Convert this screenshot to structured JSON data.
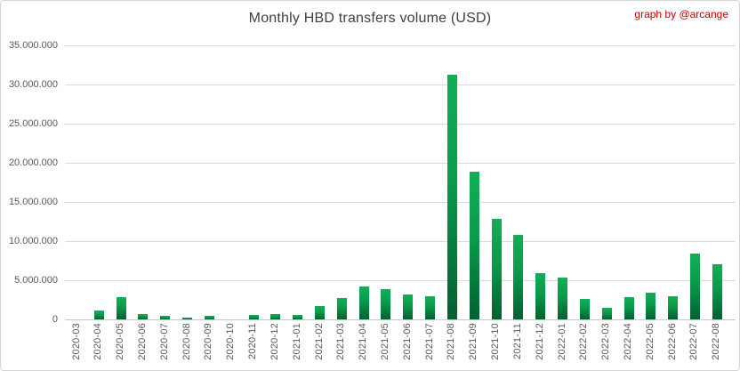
{
  "title": "Monthly HBD transfers volume (USD)",
  "credit": "graph by @arcange",
  "colors": {
    "bar_gradient_top": "#11b055",
    "bar_gradient_bottom": "#016031",
    "gridline": "#dadada",
    "axis_text": "#595959",
    "title_text": "#404040",
    "credit_text": "#c00000",
    "frame_border": "#d4d4d4"
  },
  "chart_data": {
    "type": "bar",
    "title": "Monthly HBD transfers volume (USD)",
    "xlabel": "",
    "ylabel": "",
    "grid": true,
    "legend": false,
    "ylim": [
      0,
      35000000
    ],
    "ytick_values": [
      0,
      5000000,
      10000000,
      15000000,
      20000000,
      25000000,
      30000000,
      35000000
    ],
    "ytick_labels": [
      "0",
      "5.000.000",
      "10.000.000",
      "15.000.000",
      "20.000.000",
      "25.000.000",
      "30.000.000",
      "35.000.000"
    ],
    "categories": [
      "2020-03",
      "2020-04",
      "2020-05",
      "2020-06",
      "2020-07",
      "2020-08",
      "2020-09",
      "2020-10",
      "2020-11",
      "2020-12",
      "2021-01",
      "2021-02",
      "2021-03",
      "2021-04",
      "2021-05",
      "2021-06",
      "2021-07",
      "2021-08",
      "2021-09",
      "2021-10",
      "2021-11",
      "2021-12",
      "2022-01",
      "2022-02",
      "2022-03",
      "2022-04",
      "2022-05",
      "2022-06",
      "2022-07",
      "2022-08"
    ],
    "values": [
      30000,
      1100000,
      2800000,
      660000,
      430000,
      180000,
      420000,
      40000,
      560000,
      670000,
      580000,
      1680000,
      2700000,
      4240000,
      3830000,
      3180000,
      2920000,
      31200000,
      18900000,
      12800000,
      10760000,
      5950000,
      5300000,
      2650000,
      1480000,
      2880000,
      3400000,
      2900000,
      8400000,
      7050000
    ]
  }
}
